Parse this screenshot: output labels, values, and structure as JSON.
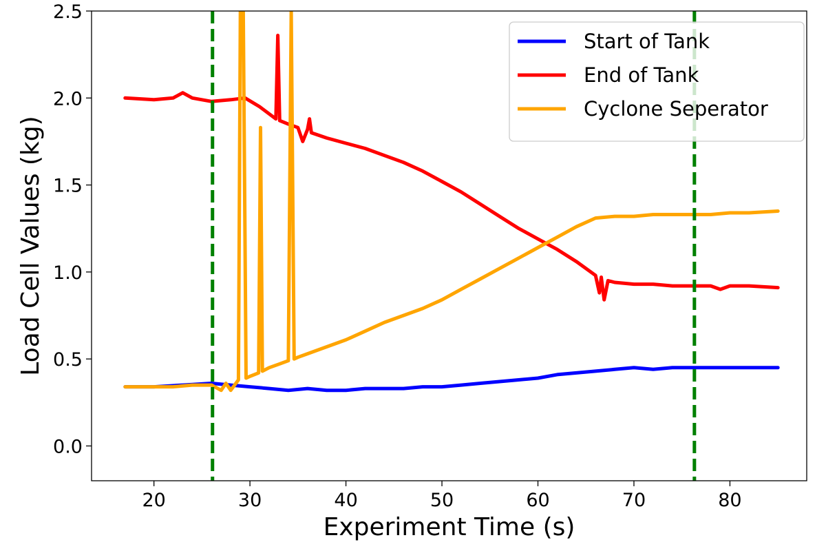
{
  "chart_data": {
    "type": "line",
    "title": "",
    "xlabel": "Experiment Time (s)",
    "ylabel": "Load Cell Values (kg)",
    "xlim": [
      13.5,
      88
    ],
    "ylim": [
      -0.2,
      2.5
    ],
    "x_ticks": [
      20,
      30,
      40,
      50,
      60,
      70,
      80
    ],
    "x_tick_labels": [
      "20",
      "30",
      "40",
      "50",
      "60",
      "70",
      "80"
    ],
    "y_ticks": [
      0.0,
      0.5,
      1.0,
      1.5,
      2.0,
      2.5
    ],
    "y_tick_labels": [
      "0.0",
      "0.5",
      "1.0",
      "1.5",
      "2.0",
      "2.5"
    ],
    "grid": false,
    "legend_position": "top-right",
    "vertical_lines": [
      {
        "x": 26.1,
        "color": "#008000",
        "style": "dashed"
      },
      {
        "x": 76.3,
        "color": "#008000",
        "style": "dashed"
      }
    ],
    "series": [
      {
        "name": "Start of Tank",
        "color": "#0000ff",
        "x": [
          17,
          20,
          23,
          26,
          28,
          30,
          32,
          34,
          36,
          38,
          40,
          42,
          44,
          46,
          48,
          50,
          52,
          54,
          56,
          58,
          60,
          62,
          64,
          66,
          68,
          70,
          72,
          74,
          76,
          78,
          80,
          82,
          85
        ],
        "y": [
          0.34,
          0.34,
          0.35,
          0.36,
          0.35,
          0.34,
          0.33,
          0.32,
          0.33,
          0.32,
          0.32,
          0.33,
          0.33,
          0.33,
          0.34,
          0.34,
          0.35,
          0.36,
          0.37,
          0.38,
          0.39,
          0.41,
          0.42,
          0.43,
          0.44,
          0.45,
          0.44,
          0.45,
          0.45,
          0.45,
          0.45,
          0.45,
          0.45
        ]
      },
      {
        "name": "End of Tank",
        "color": "#ff0000",
        "x": [
          17,
          20,
          22,
          23,
          24,
          26,
          28,
          29.5,
          31,
          32.7,
          32.9,
          33.1,
          34,
          35,
          35.5,
          36,
          36.2,
          36.4,
          38,
          40,
          42,
          44,
          46,
          48,
          50,
          52,
          54,
          56,
          58,
          60,
          62,
          64,
          66,
          66.4,
          66.6,
          66.9,
          67.3,
          68,
          70,
          72,
          74,
          76,
          78,
          79,
          80,
          82,
          85
        ],
        "y": [
          2.0,
          1.99,
          2.0,
          2.03,
          2.0,
          1.98,
          1.99,
          2.0,
          1.95,
          1.88,
          2.36,
          1.87,
          1.85,
          1.83,
          1.75,
          1.82,
          1.88,
          1.8,
          1.77,
          1.74,
          1.71,
          1.67,
          1.63,
          1.58,
          1.52,
          1.46,
          1.39,
          1.32,
          1.25,
          1.19,
          1.13,
          1.06,
          0.98,
          0.88,
          0.97,
          0.84,
          0.95,
          0.94,
          0.93,
          0.93,
          0.92,
          0.92,
          0.92,
          0.9,
          0.92,
          0.92,
          0.91
        ]
      },
      {
        "name": "Cyclone Seperator",
        "color": "#ffa500",
        "x": [
          17,
          20,
          22,
          24,
          26,
          27,
          27.5,
          28,
          28.8,
          29.0,
          29.3,
          29.6,
          30,
          30.9,
          31.1,
          31.3,
          32,
          33,
          34.0,
          34.3,
          34.6,
          35,
          36,
          38,
          40,
          42,
          44,
          46,
          48,
          50,
          52,
          54,
          56,
          58,
          60,
          62,
          64,
          66,
          68,
          70,
          72,
          74,
          76,
          78,
          80,
          82,
          85
        ],
        "y": [
          0.34,
          0.34,
          0.34,
          0.35,
          0.35,
          0.32,
          0.36,
          0.32,
          0.38,
          2.5,
          2.5,
          0.39,
          0.4,
          0.42,
          1.83,
          0.43,
          0.45,
          0.47,
          0.49,
          2.5,
          0.5,
          0.51,
          0.53,
          0.57,
          0.61,
          0.66,
          0.71,
          0.75,
          0.79,
          0.84,
          0.9,
          0.96,
          1.02,
          1.08,
          1.14,
          1.2,
          1.26,
          1.31,
          1.32,
          1.32,
          1.33,
          1.33,
          1.33,
          1.33,
          1.34,
          1.34,
          1.35
        ]
      }
    ]
  }
}
